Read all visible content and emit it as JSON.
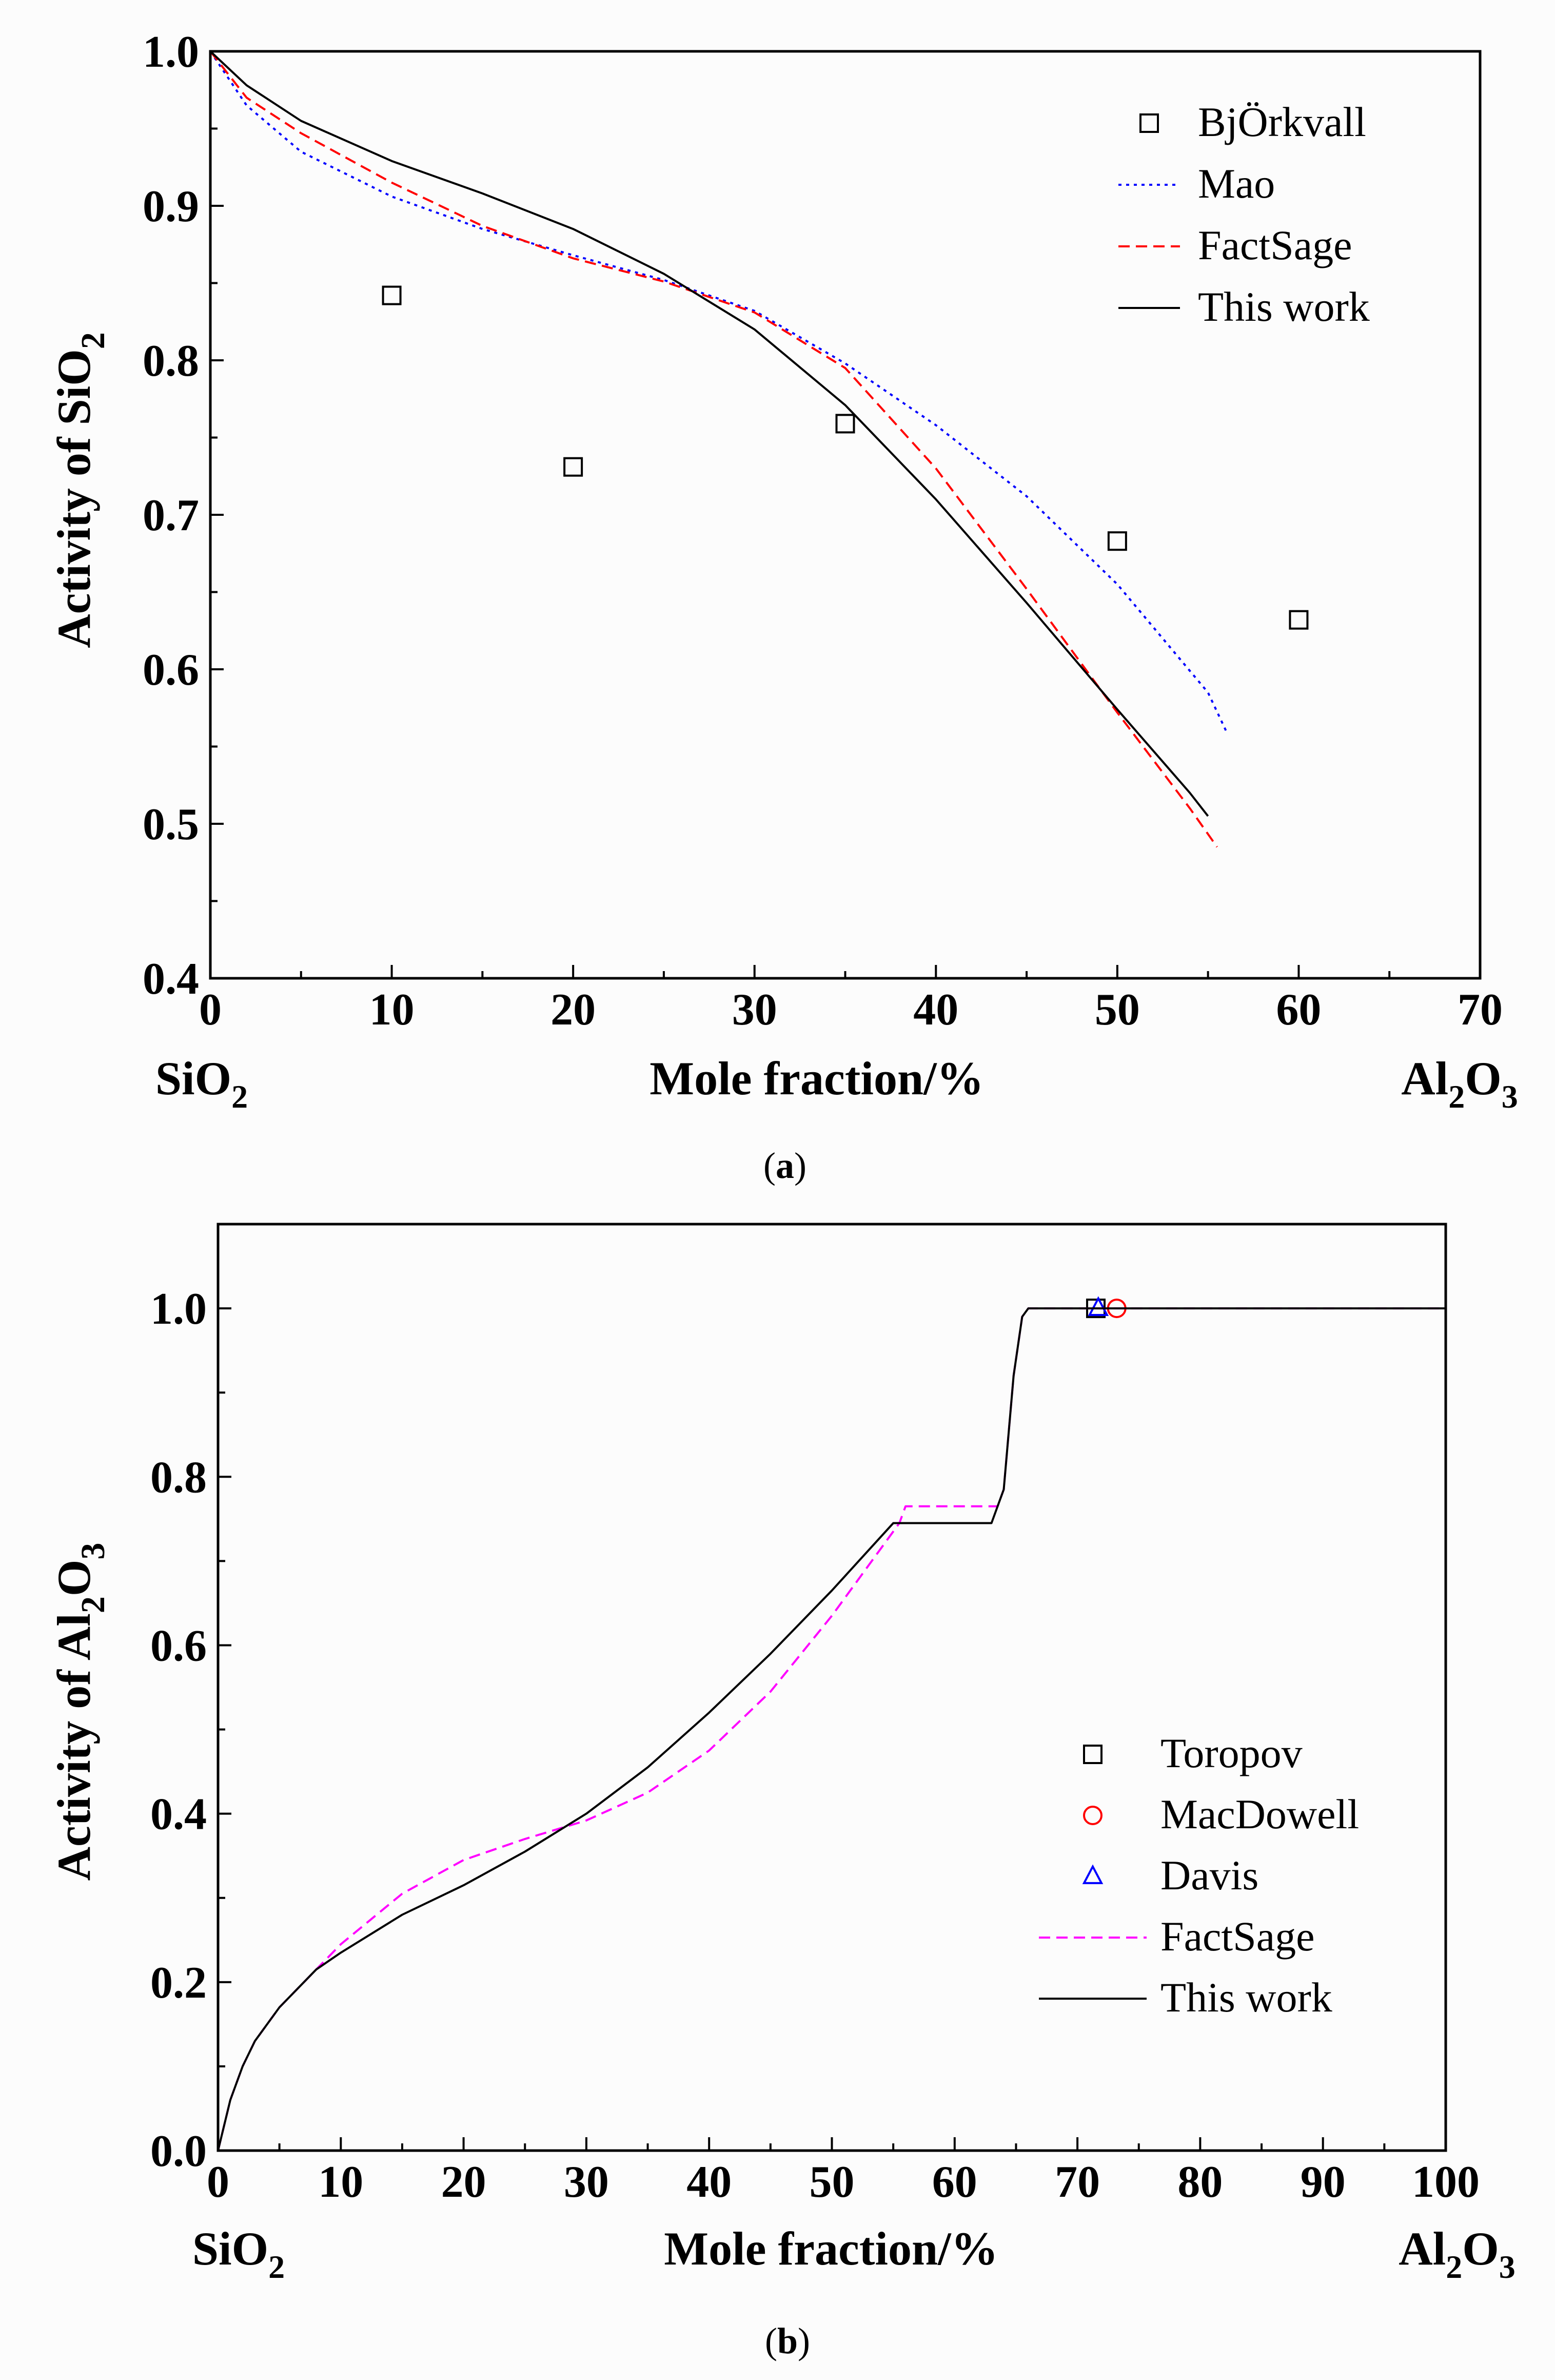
{
  "colors": {
    "black": "#000000",
    "blue": "#0000ff",
    "red": "#ff0000",
    "magenta": "#ff00ff"
  },
  "chart_data": [
    {
      "type": "line",
      "panel": "(a)",
      "panel_letter": "a",
      "ylabel": "Activity of SiO2",
      "ylabel_main": "Activity of SiO",
      "ylabel_sub": "2",
      "xlabel": "Mole fraction/%",
      "x_left_label": {
        "main": "SiO",
        "sub": "2"
      },
      "x_right_label": {
        "main1": "Al",
        "sub1": "2",
        "main2": "O",
        "sub2": "3"
      },
      "xlim": [
        0,
        70
      ],
      "ylim": [
        0.4,
        1.0
      ],
      "xticks": [
        0,
        10,
        20,
        30,
        40,
        50,
        60,
        70
      ],
      "yticks": [
        0.4,
        0.5,
        0.6,
        0.7,
        0.8,
        0.9,
        1.0
      ],
      "xtick_labels": [
        "0",
        "10",
        "20",
        "30",
        "40",
        "50",
        "60",
        "70"
      ],
      "ytick_labels": [
        "0.4",
        "0.5",
        "0.6",
        "0.7",
        "0.8",
        "0.9",
        "1.0"
      ],
      "legend_position": "top-right",
      "series": [
        {
          "name": "BjÖrkvall",
          "style": "square-marker",
          "color": "#000000",
          "x": [
            10,
            20,
            35,
            50,
            60
          ],
          "y": [
            0.842,
            0.731,
            0.759,
            0.683,
            0.632
          ]
        },
        {
          "name": "Mao",
          "style": "dotted",
          "color": "#0000ff",
          "x": [
            0,
            2,
            5,
            10,
            15,
            20,
            25,
            30,
            35,
            40,
            45,
            50,
            55,
            56
          ],
          "y": [
            1.0,
            0.965,
            0.935,
            0.906,
            0.885,
            0.868,
            0.852,
            0.832,
            0.798,
            0.758,
            0.712,
            0.655,
            0.585,
            0.56
          ]
        },
        {
          "name": "FactSage",
          "style": "dashed",
          "color": "#ff0000",
          "x": [
            0,
            2,
            5,
            10,
            15,
            20,
            25,
            30,
            35,
            40,
            45,
            50,
            54,
            55.5
          ],
          "y": [
            1.0,
            0.97,
            0.947,
            0.915,
            0.887,
            0.866,
            0.851,
            0.831,
            0.795,
            0.73,
            0.652,
            0.572,
            0.51,
            0.485
          ]
        },
        {
          "name": "This work",
          "style": "solid",
          "color": "#000000",
          "x": [
            0,
            2,
            5,
            10,
            15,
            20,
            25,
            30,
            35,
            40,
            45,
            50,
            54,
            55
          ],
          "y": [
            1.0,
            0.978,
            0.955,
            0.929,
            0.908,
            0.885,
            0.856,
            0.82,
            0.771,
            0.71,
            0.643,
            0.574,
            0.52,
            0.505
          ]
        }
      ]
    },
    {
      "type": "line",
      "panel": "(b)",
      "panel_letter": "b",
      "ylabel": "Activity of Al2O3",
      "ylabel_main1": "Activity of Al",
      "ylabel_sub1": "2",
      "ylabel_main2": "O",
      "ylabel_sub2": "3",
      "xlabel": "Mole fraction/%",
      "x_left_label": {
        "main": "SiO",
        "sub": "2"
      },
      "x_right_label": {
        "main1": "Al",
        "sub1": "2",
        "main2": "O",
        "sub2": "3"
      },
      "xlim": [
        0,
        100
      ],
      "ylim": [
        0,
        1.1
      ],
      "xticks": [
        0,
        10,
        20,
        30,
        40,
        50,
        60,
        70,
        80,
        90,
        100
      ],
      "yticks": [
        0.0,
        0.2,
        0.4,
        0.6,
        0.8,
        1.0
      ],
      "xtick_labels": [
        "0",
        "10",
        "20",
        "30",
        "40",
        "50",
        "60",
        "70",
        "80",
        "90",
        "100"
      ],
      "ytick_labels": [
        "0.0",
        "0.2",
        "0.4",
        "0.6",
        "0.8",
        "1.0"
      ],
      "legend_position": "bottom-right",
      "series": [
        {
          "name": "Toropov",
          "style": "square-marker",
          "color": "#000000",
          "x": [
            71.5
          ],
          "y": [
            1.0
          ]
        },
        {
          "name": "MacDowell",
          "style": "circle-marker",
          "color": "#ff0000",
          "x": [
            73.2
          ],
          "y": [
            1.0
          ]
        },
        {
          "name": "Davis",
          "style": "triangle-marker",
          "color": "#0000ff",
          "x": [
            71.7
          ],
          "y": [
            1.0
          ]
        },
        {
          "name": "FactSage",
          "style": "dashed",
          "color": "#ff00ff",
          "x": [
            0,
            1,
            2,
            3,
            5,
            8,
            10,
            15,
            20,
            25,
            30,
            35,
            40,
            45,
            50,
            55.5,
            56,
            63.5,
            64,
            64.8,
            65.5,
            66,
            100
          ],
          "y": [
            0,
            0.06,
            0.1,
            0.13,
            0.17,
            0.215,
            0.245,
            0.305,
            0.345,
            0.37,
            0.392,
            0.425,
            0.475,
            0.545,
            0.635,
            0.745,
            0.765,
            0.765,
            0.785,
            0.92,
            0.99,
            1.0,
            1.0
          ]
        },
        {
          "name": "This work",
          "style": "solid",
          "color": "#000000",
          "x": [
            0,
            1,
            2,
            3,
            5,
            8,
            10,
            15,
            20,
            25,
            30,
            35,
            40,
            45,
            50,
            55,
            63,
            64,
            64.8,
            65.5,
            66,
            100
          ],
          "y": [
            0,
            0.06,
            0.1,
            0.13,
            0.17,
            0.215,
            0.235,
            0.28,
            0.315,
            0.355,
            0.4,
            0.455,
            0.52,
            0.59,
            0.665,
            0.745,
            0.745,
            0.785,
            0.92,
            0.99,
            1.0,
            1.0
          ]
        }
      ]
    }
  ]
}
